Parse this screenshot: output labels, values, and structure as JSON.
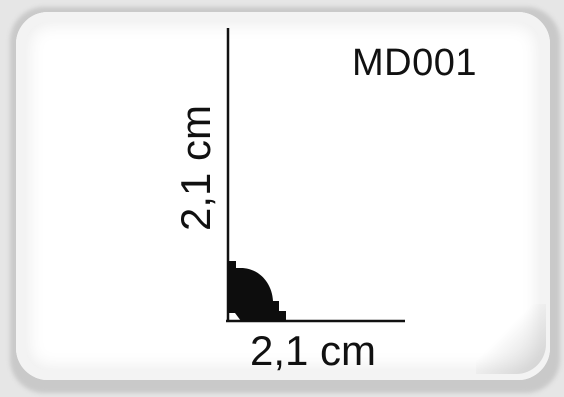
{
  "product": {
    "model_code": "MD001"
  },
  "dimensions": {
    "height_label": "2,1 cm",
    "width_label": "2,1 cm"
  },
  "colors": {
    "background": "#e6e6e6",
    "card": "#ffffff",
    "ink": "#111111"
  }
}
